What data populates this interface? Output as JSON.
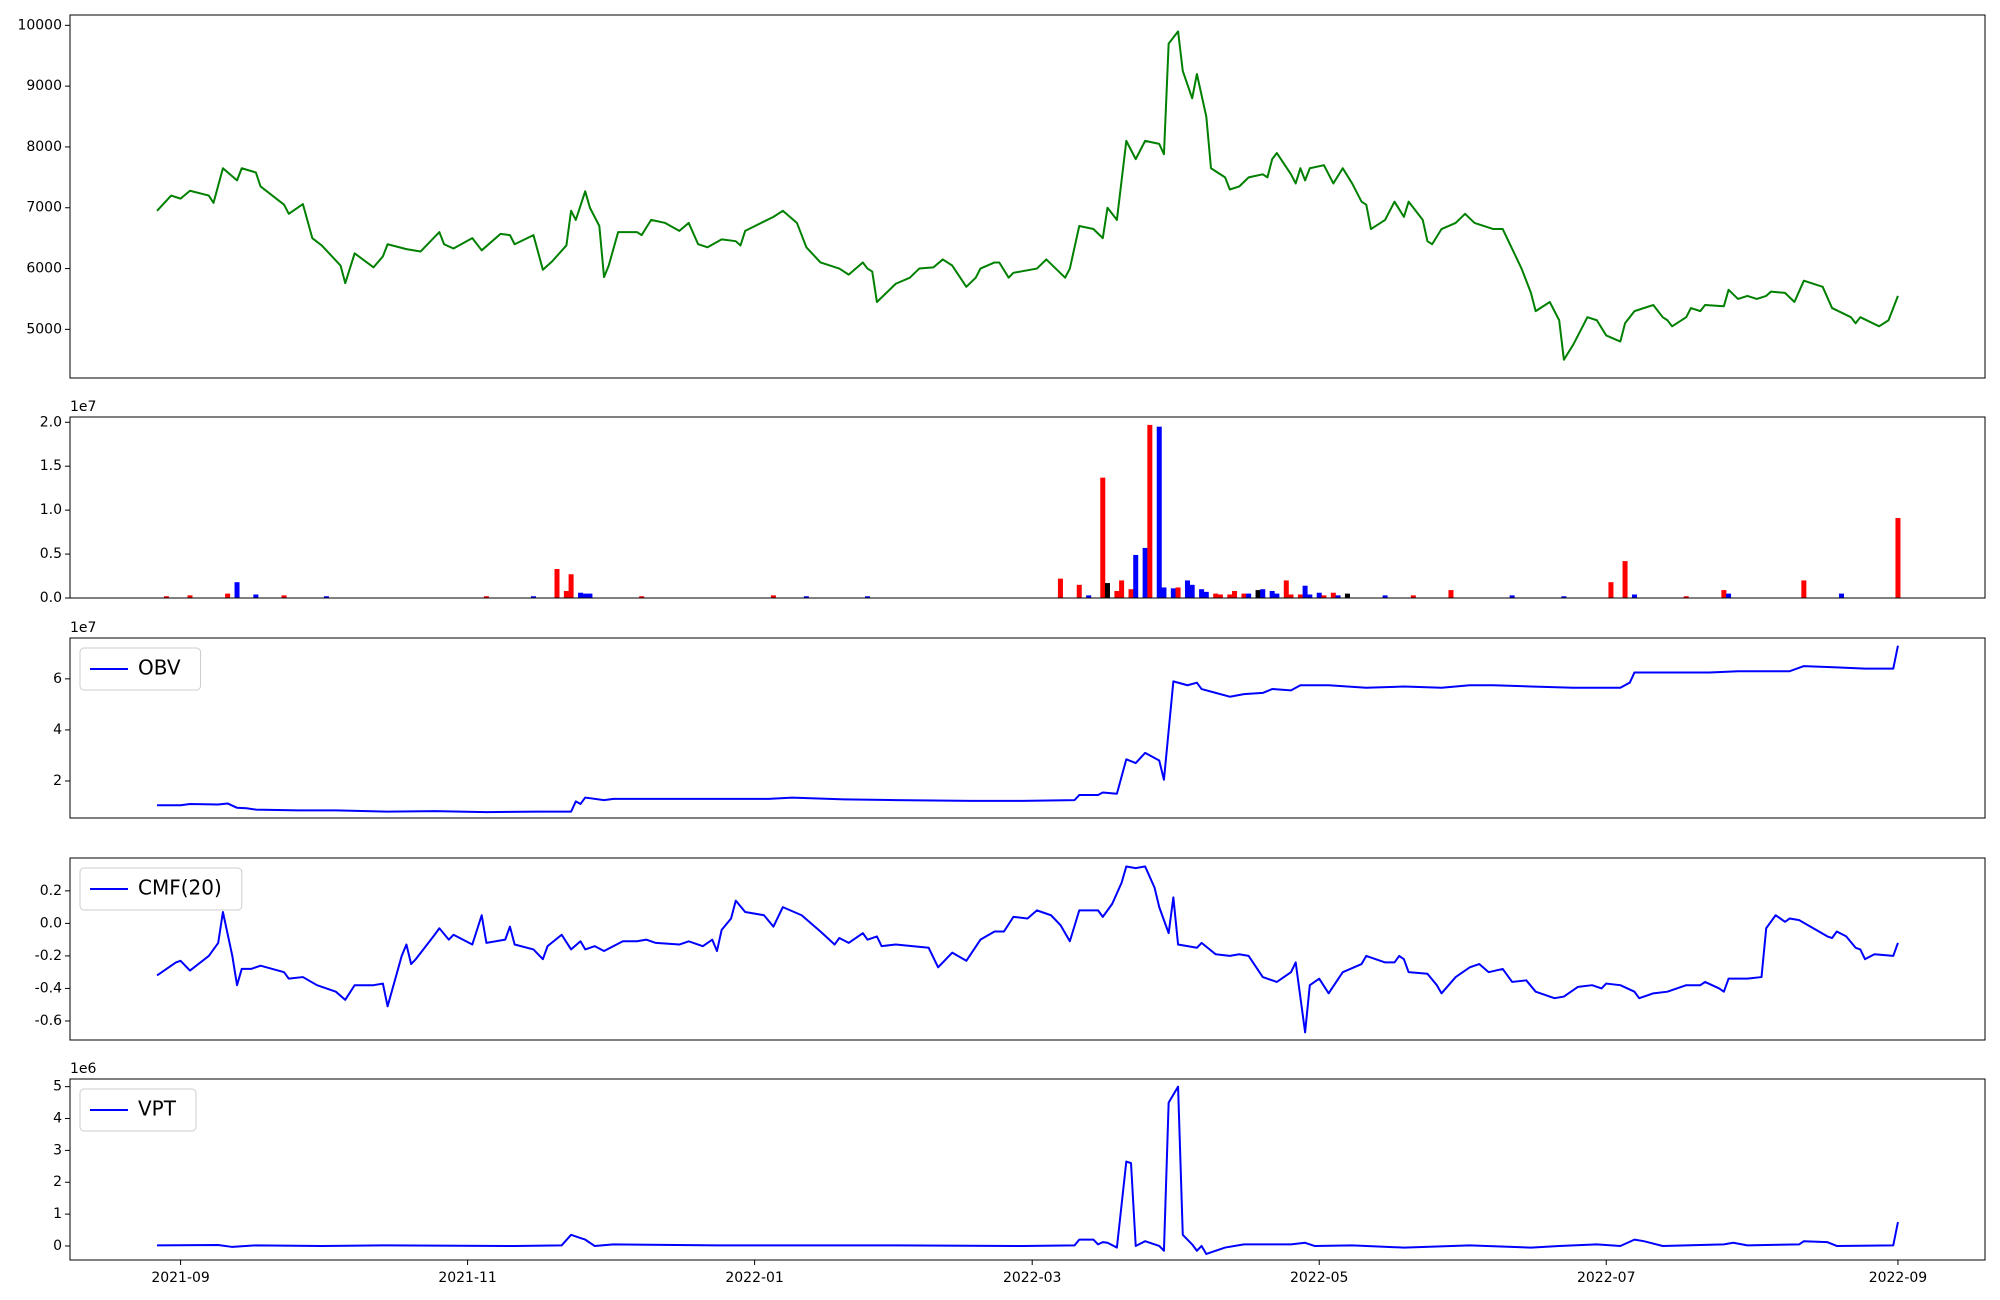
{
  "chart_data": [
    {
      "type": "line",
      "color": "green",
      "x": [
        0,
        3,
        5,
        7,
        11,
        12,
        14,
        17,
        18,
        21,
        22,
        27,
        28,
        31,
        33,
        35,
        39,
        40,
        42,
        46,
        48,
        49,
        53,
        56,
        60,
        61,
        63,
        67,
        69,
        73,
        75,
        76,
        80,
        82,
        84,
        87,
        88,
        89,
        91,
        92,
        94,
        95,
        96,
        98,
        102,
        103,
        105,
        108,
        111,
        113,
        115,
        117,
        120,
        123,
        124,
        125,
        131,
        133,
        136,
        138,
        141,
        145,
        147,
        150,
        151,
        152,
        153,
        155,
        157,
        160,
        162,
        165,
        167,
        169,
        172,
        174,
        175,
        178,
        179,
        181,
        182,
        187,
        189,
        193,
        194,
        196,
        199,
        201,
        202,
        204,
        206,
        208,
        210,
        213,
        214,
        215,
        217,
        218,
        220,
        221,
        223,
        224,
        227,
        228,
        230,
        232,
        235,
        236,
        237,
        238,
        241,
        242,
        243,
        244,
        245,
        248,
        250,
        252,
        254,
        256,
        257,
        258,
        261,
        263,
        265,
        266,
        269,
        270,
        271,
        273,
        276,
        278,
        280,
        284,
        286,
        290,
        292,
        293,
        296,
        298,
        299,
        301,
        304,
        306,
        308,
        311,
        312,
        314,
        318,
        320,
        321,
        322,
        325,
        326,
        328,
        329,
        333,
        334,
        336,
        338,
        340,
        342,
        343,
        346,
        348,
        350,
        354,
        356,
        360,
        361,
        362,
        366,
        368,
        370
      ],
      "values": [
        6950,
        7200,
        7150,
        7280,
        7200,
        7080,
        7650,
        7450,
        7650,
        7580,
        7350,
        7050,
        6900,
        7060,
        6500,
        6380,
        6050,
        5760,
        6250,
        6020,
        6200,
        6400,
        6320,
        6280,
        6600,
        6400,
        6330,
        6500,
        6300,
        6570,
        6550,
        6400,
        6550,
        5980,
        6120,
        6380,
        6950,
        6800,
        7270,
        7000,
        6700,
        5860,
        6050,
        6600,
        6600,
        6550,
        6800,
        6750,
        6620,
        6750,
        6400,
        6350,
        6480,
        6450,
        6380,
        6620,
        6850,
        6950,
        6750,
        6350,
        6100,
        6000,
        5900,
        6100,
        6000,
        5950,
        5450,
        5600,
        5750,
        5850,
        6000,
        6020,
        6150,
        6050,
        5700,
        5850,
        6000,
        6100,
        6100,
        5850,
        5930,
        6000,
        6150,
        5850,
        6000,
        6700,
        6650,
        6500,
        7000,
        6800,
        8100,
        7800,
        8100,
        8050,
        7880,
        9700,
        9900,
        9250,
        8800,
        9200,
        8500,
        7650,
        7500,
        7300,
        7350,
        7500,
        7550,
        7500,
        7800,
        7900,
        7550,
        7400,
        7650,
        7450,
        7650,
        7700,
        7400,
        7650,
        7400,
        7100,
        7050,
        6650,
        6800,
        7100,
        6850,
        7100,
        6800,
        6450,
        6400,
        6650,
        6750,
        6900,
        6750,
        6650,
        6650,
        6000,
        5600,
        5300,
        5450,
        5150,
        4500,
        4750,
        5200,
        5150,
        4900,
        4800,
        5100,
        5300,
        5400,
        5200,
        5150,
        5050,
        5200,
        5350,
        5300,
        5400,
        5380,
        5650,
        5500,
        5550,
        5500,
        5550,
        5620,
        5600,
        5450,
        5800,
        5700,
        5350,
        5200,
        5100,
        5200,
        5050,
        5150,
        5550
      ],
      "xlim": [
        -18.5,
        388.5
      ],
      "ylim": [
        4200,
        10170
      ],
      "yticks": [
        5000,
        6000,
        7000,
        8000,
        9000,
        10000
      ]
    },
    {
      "type": "bar",
      "offset_text": "1e7",
      "x": [
        2,
        7,
        15,
        17,
        21,
        27,
        36,
        70,
        80,
        85,
        87,
        88,
        90,
        91,
        92,
        103,
        131,
        138,
        151,
        192,
        196,
        198,
        201,
        202,
        204,
        205,
        207,
        208,
        210,
        211,
        213,
        214,
        216,
        217,
        219,
        220,
        222,
        223,
        225,
        226,
        228,
        229,
        231,
        232,
        234,
        235,
        237,
        238,
        240,
        241,
        243,
        244,
        245,
        247,
        248,
        250,
        251,
        253,
        261,
        267,
        275,
        288,
        299,
        309,
        312,
        314,
        325,
        333,
        334,
        350,
        358,
        370
      ],
      "values": [
        0.02,
        0.03,
        0.05,
        0.18,
        0.04,
        0.03,
        0.02,
        0.02,
        0.02,
        0.33,
        0.08,
        0.27,
        0.06,
        0.05,
        0.05,
        0.02,
        0.03,
        0.02,
        0.02,
        0.22,
        0.15,
        0.03,
        1.37,
        0.17,
        0.08,
        0.2,
        0.1,
        0.49,
        0.57,
        1.97,
        1.95,
        0.12,
        0.11,
        0.12,
        0.2,
        0.15,
        0.1,
        0.07,
        0.05,
        0.04,
        0.04,
        0.08,
        0.05,
        0.05,
        0.09,
        0.1,
        0.08,
        0.05,
        0.2,
        0.04,
        0.04,
        0.14,
        0.04,
        0.06,
        0.03,
        0.06,
        0.03,
        0.05,
        0.03,
        0.03,
        0.09,
        0.03,
        0.02,
        0.18,
        0.42,
        0.04,
        0.02,
        0.09,
        0.05,
        0.2,
        0.05,
        0.91
      ],
      "colors": [
        "red",
        "red",
        "red",
        "blue",
        "blue",
        "red",
        "blue",
        "red",
        "blue",
        "red",
        "red",
        "red",
        "blue",
        "blue",
        "blue",
        "red",
        "red",
        "blue",
        "blue",
        "red",
        "red",
        "blue",
        "red",
        "black",
        "red",
        "red",
        "red",
        "blue",
        "blue",
        "red",
        "blue",
        "blue",
        "blue",
        "red",
        "blue",
        "blue",
        "blue",
        "blue",
        "red",
        "red",
        "red",
        "red",
        "red",
        "blue",
        "black",
        "blue",
        "blue",
        "blue",
        "red",
        "red",
        "red",
        "blue",
        "blue",
        "blue",
        "red",
        "red",
        "blue",
        "black",
        "blue",
        "red",
        "red",
        "blue",
        "blue",
        "red",
        "red",
        "blue",
        "red",
        "red",
        "blue",
        "red",
        "blue",
        "red"
      ],
      "xlim": [
        -18.5,
        388.5
      ],
      "ylim": [
        0,
        2.06
      ],
      "yticks": [
        {
          "value": 0,
          "label": "0.0"
        },
        0.5,
        {
          "value": 1,
          "label": "1.0"
        },
        1.5,
        {
          "value": 2,
          "label": "2.0"
        }
      ]
    },
    {
      "type": "line",
      "offset_text": "1e7",
      "legend": "upper left",
      "x": [
        0,
        5,
        7,
        13,
        15,
        17,
        19,
        21,
        30,
        38,
        49,
        59,
        70,
        81,
        88,
        89,
        90,
        91,
        95,
        97,
        111,
        130,
        135,
        146,
        157,
        173,
        184,
        195,
        196,
        200,
        201,
        204,
        206,
        208,
        210,
        213,
        214,
        216,
        219,
        221,
        222,
        225,
        228,
        231,
        235,
        237,
        241,
        243,
        249,
        257,
        265,
        273,
        276,
        279,
        284,
        292,
        301,
        311,
        313,
        314,
        322,
        330,
        336,
        347,
        350,
        357,
        363,
        369,
        370
      ],
      "series": [
        {
          "name": "OBV",
          "color": "blue",
          "values": [
            1.05,
            1.05,
            1.1,
            1.08,
            1.12,
            0.95,
            0.93,
            0.88,
            0.85,
            0.85,
            0.8,
            0.82,
            0.78,
            0.8,
            0.8,
            1.2,
            1.1,
            1.35,
            1.25,
            1.3,
            1.3,
            1.3,
            1.35,
            1.28,
            1.25,
            1.22,
            1.22,
            1.25,
            1.45,
            1.45,
            1.55,
            1.5,
            2.85,
            2.7,
            3.1,
            2.8,
            2.05,
            5.9,
            5.75,
            5.85,
            5.6,
            5.45,
            5.3,
            5.4,
            5.45,
            5.6,
            5.55,
            5.75,
            5.75,
            5.65,
            5.7,
            5.65,
            5.7,
            5.75,
            5.75,
            5.7,
            5.65,
            5.65,
            5.85,
            6.25,
            6.25,
            6.25,
            6.3,
            6.3,
            6.5,
            6.45,
            6.4,
            6.4,
            7.3
          ]
        }
      ],
      "xlim": [
        -18.5,
        388.5
      ],
      "ylim": [
        0.55,
        7.6
      ],
      "yticks": [
        2,
        4,
        6
      ]
    },
    {
      "type": "line",
      "legend": "upper left",
      "x": [
        0,
        2,
        4,
        5,
        7,
        11,
        13,
        14,
        16,
        17,
        18,
        20,
        22,
        27,
        28,
        31,
        34,
        38,
        40,
        42,
        46,
        48,
        49,
        52,
        53,
        54,
        55,
        59,
        60,
        62,
        63,
        67,
        69,
        70,
        74,
        75,
        76,
        80,
        82,
        83,
        86,
        88,
        90,
        91,
        93,
        95,
        99,
        102,
        104,
        106,
        111,
        113,
        116,
        118,
        119,
        120,
        122,
        123,
        125,
        129,
        131,
        133,
        137,
        141,
        144,
        145,
        147,
        150,
        151,
        153,
        154,
        157,
        164,
        166,
        169,
        172,
        175,
        178,
        180,
        182,
        185,
        187,
        190,
        192,
        194,
        196,
        200,
        201,
        203,
        205,
        206,
        208,
        210,
        212,
        213,
        215,
        216,
        217,
        221,
        222,
        225,
        228,
        230,
        232,
        235,
        238,
        241,
        242,
        244,
        245,
        247,
        249,
        252,
        256,
        257,
        261,
        263,
        264,
        265,
        266,
        270,
        272,
        273,
        276,
        279,
        281,
        283,
        286,
        288,
        291,
        293,
        297,
        299,
        302,
        305,
        307,
        308,
        311,
        314,
        315,
        318,
        321,
        325,
        328,
        329,
        332,
        333,
        334,
        338,
        341,
        342,
        344,
        346,
        347,
        349,
        355,
        356,
        357,
        359,
        361,
        362,
        363,
        365,
        369,
        370
      ],
      "series": [
        {
          "name": "CMF(20)",
          "color": "blue",
          "values": [
            -0.32,
            -0.28,
            -0.24,
            -0.23,
            -0.29,
            -0.2,
            -0.12,
            0.07,
            -0.2,
            -0.38,
            -0.28,
            -0.28,
            -0.26,
            -0.3,
            -0.34,
            -0.33,
            -0.38,
            -0.42,
            -0.47,
            -0.38,
            -0.38,
            -0.37,
            -0.51,
            -0.2,
            -0.13,
            -0.25,
            -0.22,
            -0.07,
            -0.03,
            -0.1,
            -0.07,
            -0.13,
            0.05,
            -0.12,
            -0.1,
            -0.02,
            -0.13,
            -0.16,
            -0.22,
            -0.14,
            -0.07,
            -0.16,
            -0.11,
            -0.16,
            -0.14,
            -0.17,
            -0.11,
            -0.11,
            -0.1,
            -0.12,
            -0.13,
            -0.11,
            -0.14,
            -0.1,
            -0.17,
            -0.04,
            0.03,
            0.14,
            0.07,
            0.05,
            -0.02,
            0.1,
            0.05,
            -0.05,
            -0.13,
            -0.09,
            -0.12,
            -0.06,
            -0.1,
            -0.08,
            -0.14,
            -0.13,
            -0.15,
            -0.27,
            -0.18,
            -0.23,
            -0.1,
            -0.05,
            -0.05,
            0.04,
            0.03,
            0.08,
            0.05,
            -0.01,
            -0.11,
            0.08,
            0.08,
            0.04,
            0.12,
            0.25,
            0.35,
            0.34,
            0.35,
            0.22,
            0.1,
            -0.06,
            0.16,
            -0.13,
            -0.15,
            -0.12,
            -0.19,
            -0.2,
            -0.19,
            -0.2,
            -0.33,
            -0.36,
            -0.3,
            -0.24,
            -0.67,
            -0.38,
            -0.34,
            -0.43,
            -0.3,
            -0.25,
            -0.2,
            -0.24,
            -0.24,
            -0.2,
            -0.22,
            -0.3,
            -0.31,
            -0.38,
            -0.43,
            -0.33,
            -0.27,
            -0.25,
            -0.3,
            -0.28,
            -0.36,
            -0.35,
            -0.42,
            -0.46,
            -0.45,
            -0.39,
            -0.38,
            -0.4,
            -0.37,
            -0.38,
            -0.42,
            -0.46,
            -0.43,
            -0.42,
            -0.38,
            -0.38,
            -0.36,
            -0.4,
            -0.42,
            -0.34,
            -0.34,
            -0.33,
            -0.03,
            0.05,
            0.01,
            0.03,
            0.02,
            -0.08,
            -0.09,
            -0.05,
            -0.08,
            -0.15,
            -0.16,
            -0.22,
            -0.19,
            -0.2,
            -0.12
          ]
        }
      ],
      "xlim": [
        -18.5,
        388.5
      ],
      "ylim": [
        -0.717,
        0.402
      ],
      "yticks": [
        -0.6,
        -0.4,
        -0.2,
        {
          "value": 0,
          "label": "0.0"
        },
        0.2
      ]
    },
    {
      "type": "line",
      "offset_text": "1e6",
      "legend": "upper left",
      "x": [
        0,
        13,
        16,
        21,
        35,
        49,
        76,
        86,
        88,
        90,
        91,
        93,
        97,
        119,
        157,
        184,
        195,
        196,
        199,
        200,
        201,
        202,
        204,
        206,
        207,
        208,
        210,
        213,
        214,
        215,
        217,
        218,
        220,
        221,
        222,
        223,
        227,
        231,
        241,
        244,
        246,
        254,
        265,
        279,
        292,
        298,
        306,
        311,
        314,
        316,
        320,
        333,
        335,
        338,
        349,
        350,
        355,
        357,
        369,
        370
      ],
      "series": [
        {
          "name": "VPT",
          "color": "blue",
          "values": [
            0.02,
            0.03,
            -0.03,
            0.02,
            0,
            0.02,
            0,
            0.02,
            0.35,
            0.25,
            0.2,
            0,
            0.05,
            0.02,
            0.02,
            0,
            0.02,
            0.2,
            0.2,
            0.05,
            0.12,
            0.1,
            -0.05,
            2.65,
            2.6,
            0,
            0.15,
            0,
            -0.15,
            4.5,
            5.0,
            0.35,
            0.05,
            -0.15,
            0,
            -0.25,
            -0.05,
            0.05,
            0.05,
            0.1,
            0,
            0.02,
            -0.05,
            0.02,
            -0.05,
            0,
            0.05,
            0,
            0.2,
            0.15,
            0,
            0.05,
            0.1,
            0.02,
            0.05,
            0.15,
            0.12,
            0,
            0.02,
            0.75
          ]
        }
      ],
      "xlim": [
        -18.5,
        388.5
      ],
      "ylim": [
        -0.44,
        5.24
      ],
      "yticks": [
        0,
        1,
        2,
        3,
        4,
        5
      ],
      "xticks": [
        {
          "value": 5,
          "label": "2021-09"
        },
        {
          "value": 66,
          "label": "2021-11"
        },
        {
          "value": 127,
          "label": "2022-01"
        },
        {
          "value": 186,
          "label": "2022-03"
        },
        {
          "value": 247,
          "label": "2022-05"
        },
        {
          "value": 308,
          "label": "2022-07"
        },
        {
          "value": 370,
          "label": "2022-09"
        }
      ]
    }
  ]
}
